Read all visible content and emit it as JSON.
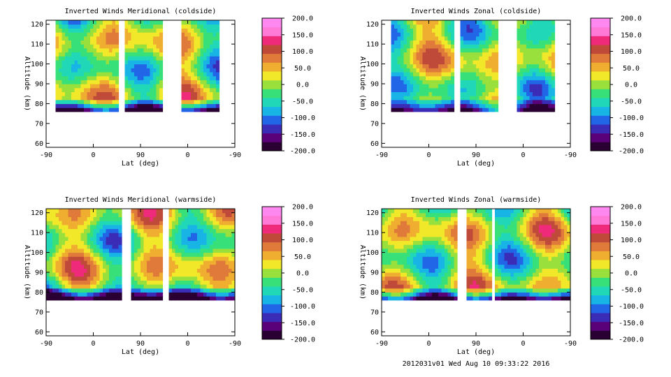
{
  "colors": {
    "background": "#ffffff",
    "empty_region": "#ffffff",
    "contour_line": "#000000",
    "colorbar": [
      "#2a0033",
      "#5a0078",
      "#3a2cb6",
      "#2266e8",
      "#18b4e6",
      "#20d8b8",
      "#38e07a",
      "#9ae03c",
      "#f0e828",
      "#f0ae30",
      "#e07a3a",
      "#c04a3a",
      "#f02a7a",
      "#ff7ad6",
      "#ff88f0"
    ]
  },
  "footer": {
    "stamp": "2012031v01 Wed Aug 10 09:33:22 2016"
  },
  "chart_data": [
    {
      "type": "heatmap",
      "title": "Inverted Winds Meridional (coldside)",
      "xlabel": "Lat (deg)",
      "ylabel": "Altitude (km)",
      "x_ticks": [
        "-90",
        "0",
        "90",
        "0",
        "-90"
      ],
      "y_ticks": [
        60,
        70,
        80,
        90,
        100,
        110,
        120
      ],
      "ylim": [
        58,
        122
      ],
      "colorbar_ticks": [
        "200.0",
        "150.0",
        "100.0",
        "50.0",
        "0.0",
        "-50.0",
        "-100.0",
        "-150.0",
        "-200.0"
      ],
      "colorbar_range": [
        -200,
        200
      ],
      "data_gaps_lat_segments": [
        [
          -90,
          -70
        ],
        [
          50,
          60
        ],
        [
          130,
          165
        ],
        [
          240,
          270
        ]
      ]
    },
    {
      "type": "heatmap",
      "title": "Inverted Winds Zonal (coldside)",
      "xlabel": "Lat (deg)",
      "ylabel": "Altitude (km)",
      "x_ticks": [
        "-90",
        "0",
        "90",
        "0",
        "-90"
      ],
      "y_ticks": [
        60,
        70,
        80,
        90,
        100,
        110,
        120
      ],
      "ylim": [
        58,
        122
      ],
      "colorbar_ticks": [
        "200.0",
        "150.0",
        "100.0",
        "50.0",
        "0.0",
        "-50.0",
        "-100.0",
        "-150.0",
        "-200.0"
      ],
      "colorbar_range": [
        -200,
        200
      ],
      "data_gaps_lat_segments": [
        [
          -90,
          -70
        ],
        [
          50,
          60
        ],
        [
          130,
          165
        ],
        [
          240,
          270
        ]
      ]
    },
    {
      "type": "heatmap",
      "title": "Inverted Winds Meridional (warmside)",
      "xlabel": "Lat (deg)",
      "ylabel": "Altitude (km)",
      "x_ticks": [
        "-90",
        "0",
        "90",
        "0",
        "-90"
      ],
      "y_ticks": [
        60,
        70,
        80,
        90,
        100,
        110,
        120
      ],
      "ylim": [
        58,
        122
      ],
      "colorbar_ticks": [
        "200.0",
        "150.0",
        "100.0",
        "50.0",
        "0.0",
        "-50.0",
        "-100.0",
        "-150.0",
        "-200.0"
      ],
      "colorbar_range": [
        -200,
        200
      ],
      "data_gaps_lat_segments": [
        [
          55,
          70
        ],
        [
          135,
          145
        ]
      ]
    },
    {
      "type": "heatmap",
      "title": "Inverted Winds Zonal (warmside)",
      "xlabel": "Lat (deg)",
      "ylabel": "Altitude (km)",
      "x_ticks": [
        "-90",
        "0",
        "90",
        "0",
        "-90"
      ],
      "y_ticks": [
        60,
        70,
        80,
        90,
        100,
        110,
        120
      ],
      "ylim": [
        58,
        122
      ],
      "colorbar_ticks": [
        "200.0",
        "150.0",
        "100.0",
        "50.0",
        "0.0",
        "-50.0",
        "-100.0",
        "-150.0",
        "-200.0"
      ],
      "colorbar_range": [
        -200,
        200
      ],
      "data_gaps_lat_segments": [
        [
          55,
          70
        ],
        [
          120,
          128
        ]
      ]
    }
  ]
}
